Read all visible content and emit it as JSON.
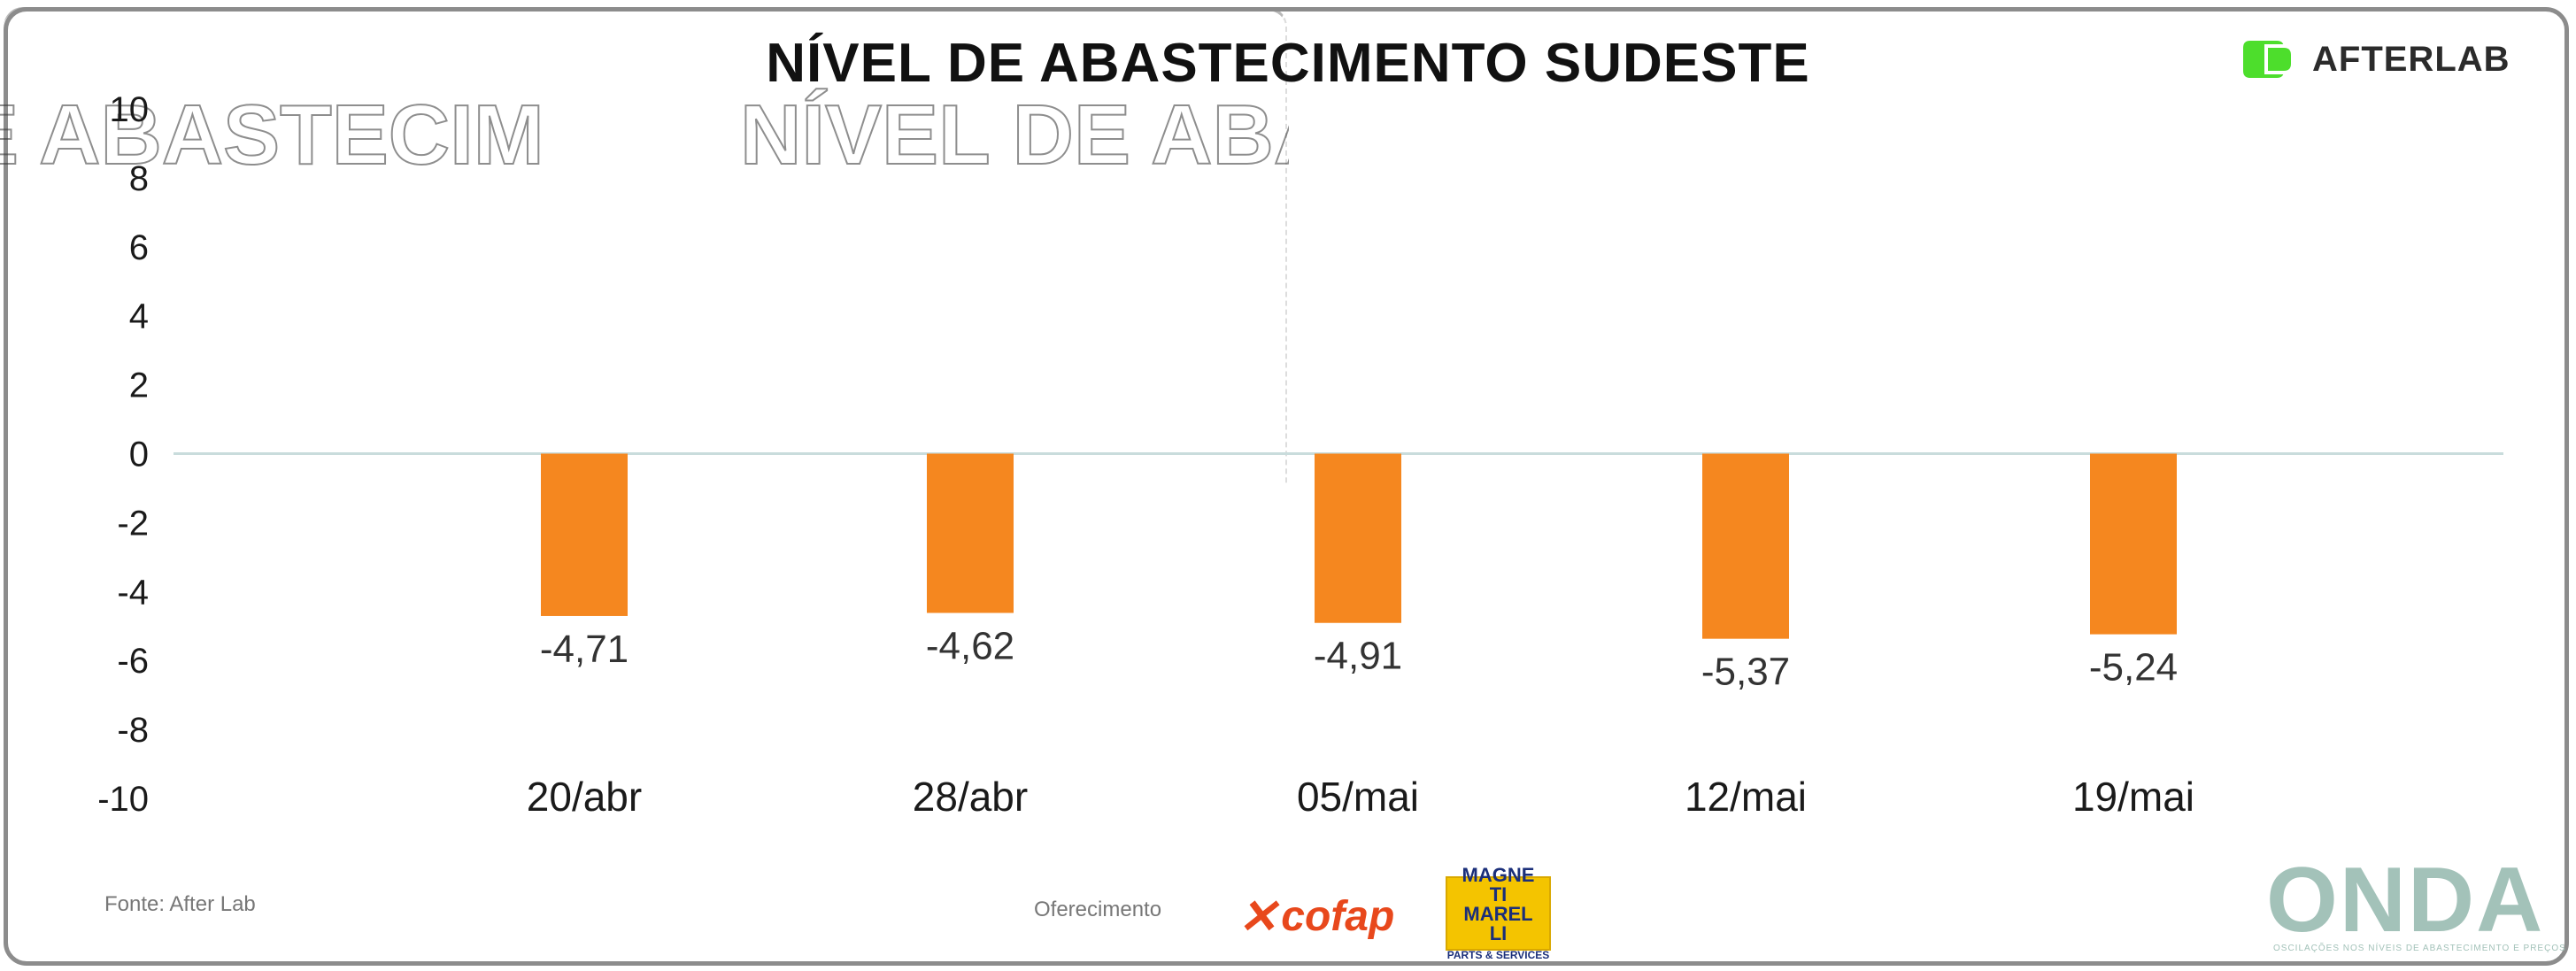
{
  "header": {
    "title": "NÍVEL DE ABASTECIMENTO SUDESTE",
    "brand": "AFTERLAB"
  },
  "chart_data": {
    "type": "bar",
    "title": "NÍVEL DE ABASTECIMENTO SUDESTE",
    "categories": [
      "20/abr",
      "28/abr",
      "05/mai",
      "12/mai",
      "19/mai"
    ],
    "values": [
      -4.71,
      -4.62,
      -4.91,
      -5.37,
      -5.24
    ],
    "value_labels": [
      "-4,71",
      "-4,62",
      "-4,91",
      "-5,37",
      "-5,24"
    ],
    "ylim": [
      -10,
      10
    ],
    "yticks": [
      10,
      8,
      6,
      4,
      2,
      0,
      -2,
      -4,
      -6,
      -8,
      -10
    ],
    "xlabel": "",
    "ylabel": "",
    "grid": false,
    "bar_color": "#f5871f",
    "zero_line_color": "#c9dcdc"
  },
  "footer": {
    "source": "Fonte: After Lab",
    "sponsor_label": "Oferecimento",
    "sponsor1": "cofap",
    "sponsor2_brand": "MAGNETI MARELLI",
    "sponsor2_sub": "PARTS & SERVICES",
    "onda": "ONDA",
    "onda_sub": "OSCILAÇÕES NOS NÍVEIS DE ABASTECIMENTO E PREÇOS"
  },
  "colors": {
    "brand_green": "#4dde2c",
    "onda": "#a3c2b9",
    "cofap": "#e8481c",
    "magneti_bg": "#f4c400"
  }
}
